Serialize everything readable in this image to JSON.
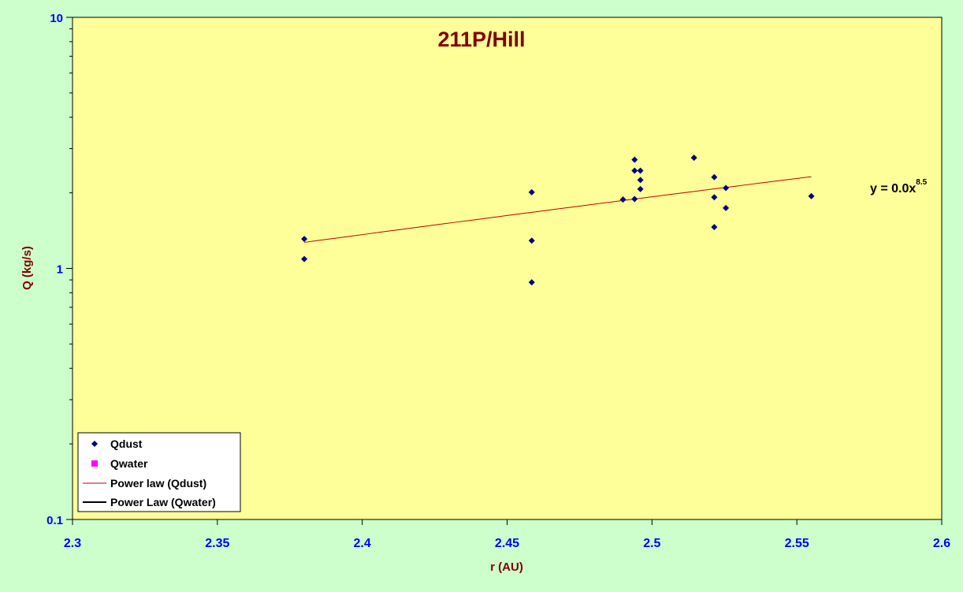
{
  "chart_data": {
    "type": "scatter",
    "title": "211P/Hill",
    "xlabel": "r (AU)",
    "ylabel": "Q (kg/s)",
    "xlim": [
      2.3,
      2.6
    ],
    "ylim": [
      0.1,
      10
    ],
    "yscale": "log",
    "xticks": [
      "2.3",
      "2.35",
      "2.4",
      "2.45",
      "2.5",
      "2.55",
      "2.6"
    ],
    "yticks": [
      "10",
      "1",
      "0.1"
    ],
    "grid": false,
    "legend_position": "bottom-left",
    "colors": {
      "plot_background": "#ffff99",
      "page_background": "#ccffcc",
      "qdust": "#000080",
      "qwater": "#ff00ff",
      "fit_dust": "#c00000",
      "fit_water": "#000000"
    },
    "series": [
      {
        "name": "Qdust",
        "marker": "diamond",
        "points": [
          [
            2.38,
            1.31
          ],
          [
            2.38,
            1.09
          ],
          [
            2.4585,
            2.01
          ],
          [
            2.4585,
            1.29
          ],
          [
            2.4585,
            0.88
          ],
          [
            2.49,
            1.88
          ],
          [
            2.494,
            2.71
          ],
          [
            2.494,
            2.45
          ],
          [
            2.494,
            1.89
          ],
          [
            2.496,
            2.45
          ],
          [
            2.496,
            2.25
          ],
          [
            2.496,
            2.07
          ],
          [
            2.5145,
            2.76
          ],
          [
            2.5215,
            2.31
          ],
          [
            2.5215,
            1.92
          ],
          [
            2.5215,
            1.46
          ],
          [
            2.5255,
            2.09
          ],
          [
            2.5255,
            1.74
          ],
          [
            2.555,
            1.94
          ]
        ]
      },
      {
        "name": "Qwater",
        "marker": "square",
        "points": []
      }
    ],
    "fits": [
      {
        "name": "Power law (Qdust)",
        "x_range": [
          2.38,
          2.555
        ],
        "y_range": [
          1.27,
          2.32
        ]
      },
      {
        "name": "Power Law (Qwater)",
        "x_range": [],
        "y_range": []
      }
    ],
    "annotation": {
      "text": "y = 0.0x",
      "exponent": "8.5"
    }
  }
}
